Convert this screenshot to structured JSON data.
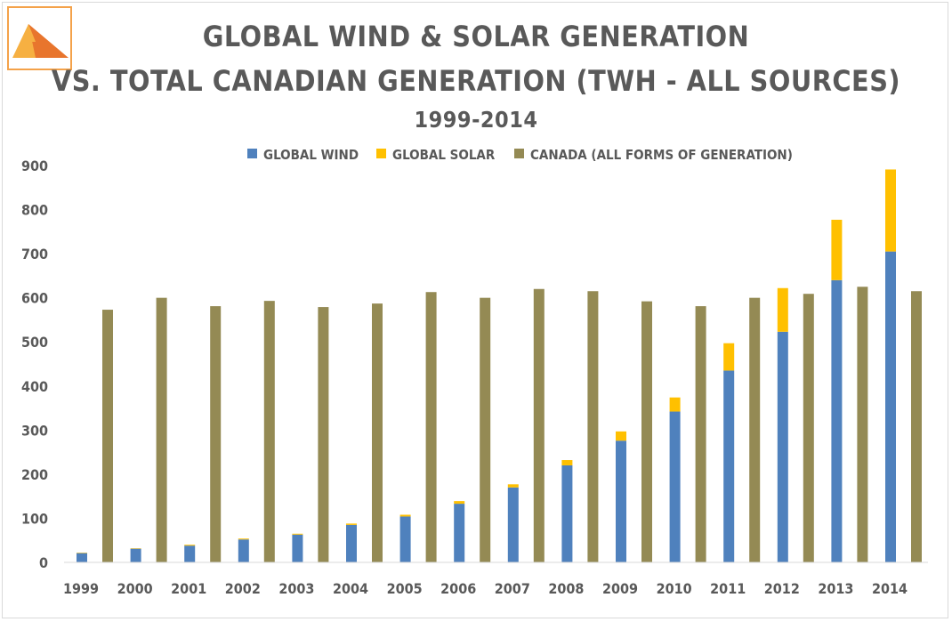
{
  "chart_data": {
    "type": "bar",
    "title_line1": "GLOBAL WIND & SOLAR GENERATION",
    "title_line2": "VS. TOTAL CANADIAN GENERATION (TWH - ALL SOURCES)",
    "subtitle": "1999-2014",
    "categories": [
      "1999",
      "2000",
      "2001",
      "2002",
      "2003",
      "2004",
      "2005",
      "2006",
      "2007",
      "2008",
      "2009",
      "2010",
      "2011",
      "2012",
      "2013",
      "2014"
    ],
    "series": [
      {
        "name": "GLOBAL WIND",
        "color": "#4f81bd",
        "values": [
          21,
          31,
          38,
          52,
          63,
          85,
          104,
          133,
          170,
          220,
          276,
          342,
          435,
          523,
          640,
          705
        ]
      },
      {
        "name": "GLOBAL SOLAR",
        "color": "#ffc000",
        "values": [
          1,
          1,
          2,
          2,
          2,
          3,
          4,
          6,
          7,
          12,
          21,
          32,
          62,
          99,
          137,
          186
        ]
      },
      {
        "name": "CANADA (ALL FORMS OF GENERATION)",
        "color": "#948a54",
        "values": [
          573,
          600,
          581,
          593,
          579,
          587,
          613,
          600,
          620,
          615,
          592,
          581,
          600,
          609,
          625,
          615
        ]
      }
    ],
    "ylim": [
      0,
      900
    ],
    "yticks": [
      0,
      100,
      200,
      300,
      400,
      500,
      600,
      700,
      800,
      900
    ],
    "legend": "top-center",
    "grid": false,
    "stacked_series": [
      "GLOBAL WIND",
      "GLOBAL SOLAR"
    ]
  },
  "logo": {
    "icon": "triangle-logo-icon",
    "colors": [
      "#f6b042",
      "#e8752d"
    ]
  }
}
